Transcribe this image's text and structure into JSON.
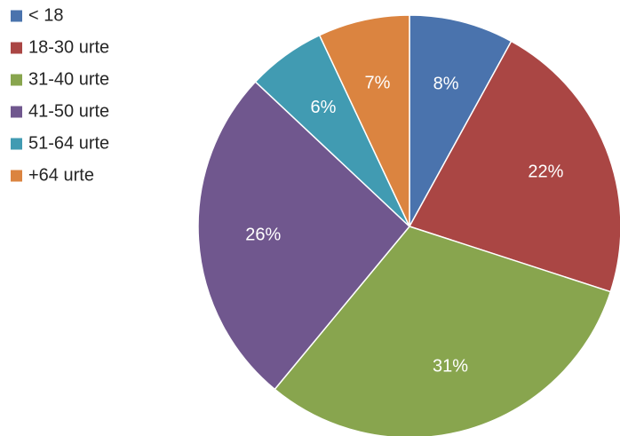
{
  "chart_data": {
    "type": "pie",
    "title": "",
    "legend_position": "top-left",
    "start_angle": "12 o'clock, clockwise",
    "slices": [
      {
        "label": "< 18",
        "value": 8,
        "data_label": "8%",
        "color": "#4a73ad"
      },
      {
        "label": "18-30 urte",
        "value": 22,
        "data_label": "22%",
        "color": "#aa4644"
      },
      {
        "label": "31-40 urte",
        "value": 31,
        "data_label": "31%",
        "color": "#88a54e"
      },
      {
        "label": "41-50 urte",
        "value": 26,
        "data_label": "26%",
        "color": "#70578e"
      },
      {
        "label": "51-64 urte",
        "value": 6,
        "data_label": "6%",
        "color": "#419bb2"
      },
      {
        "label": "+64 urte",
        "value": 7,
        "data_label": "7%",
        "color": "#db8440"
      }
    ]
  }
}
